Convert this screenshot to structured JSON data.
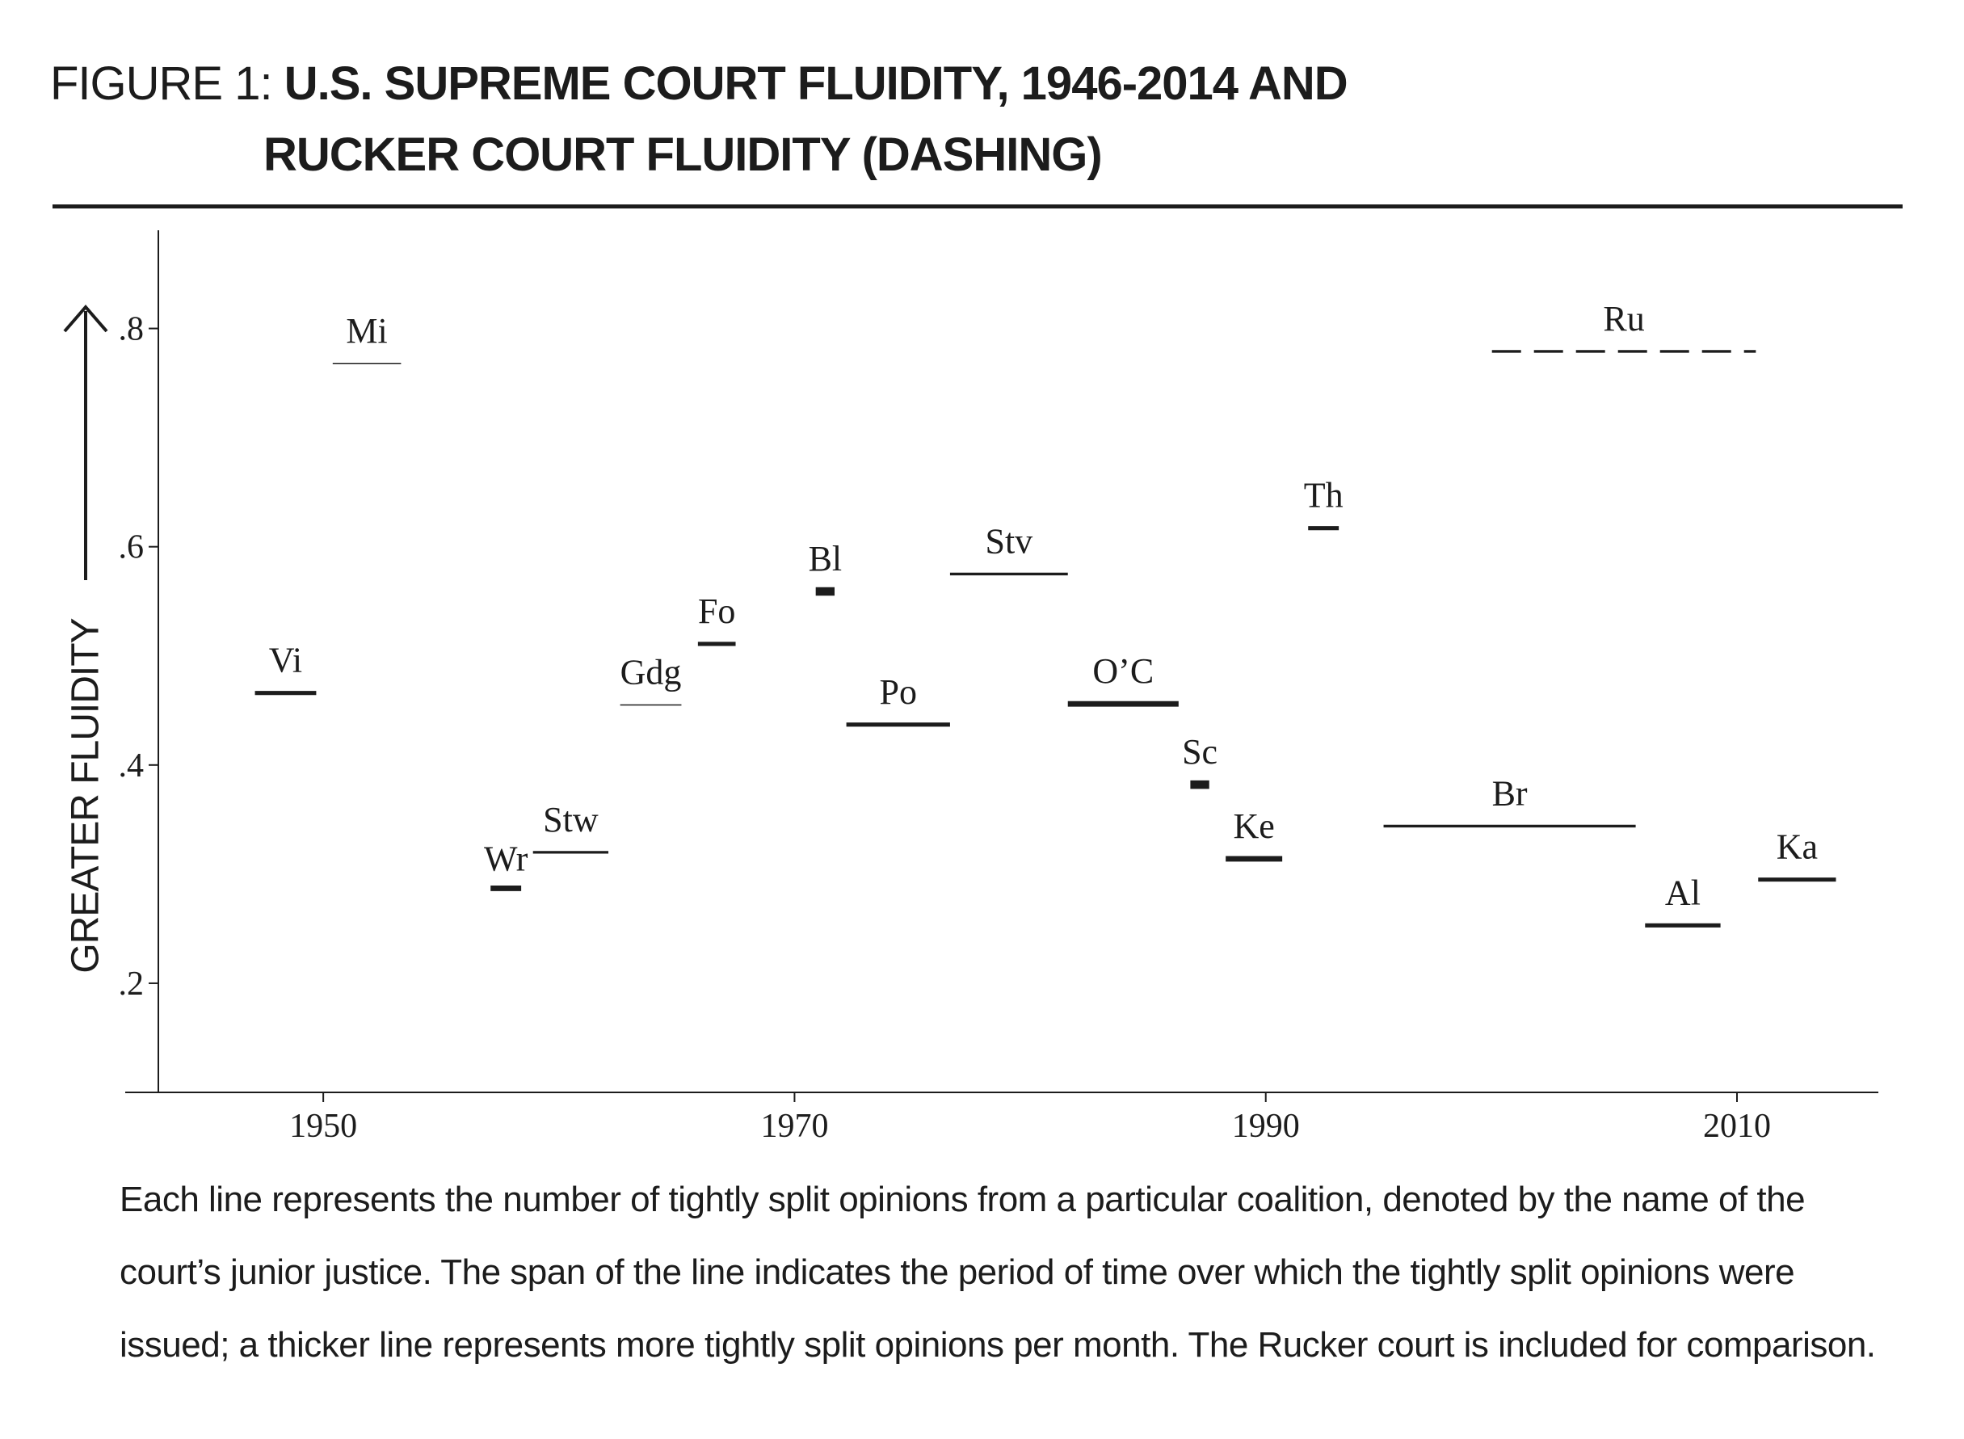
{
  "figure": {
    "label": "FIGURE 1:",
    "title_line1": "U.S. SUPREME COURT FLUIDITY, 1946-2014 AND",
    "title_line2": "RUCKER COURT FLUIDITY (DASHING)"
  },
  "caption_lines": [
    "Each line represents the number of tightly split opinions from a particular coalition, denoted by the name  of the",
    "court’s junior justice. The span of the line indicates the period of time over which the tightly split opinions were",
    "issued; a thicker line represents more tightly split opinions per month. The Rucker court is included for comparison."
  ],
  "chart_data": {
    "type": "scatter",
    "ylabel": "GREATER FLUIDITY",
    "xlim": [
      1943,
      2016
    ],
    "ylim": [
      0.1,
      0.89
    ],
    "x_ticks": [
      1950,
      1970,
      1990,
      2010
    ],
    "x_tick_labels": [
      "1950",
      "1970",
      "1990",
      "2010"
    ],
    "y_ticks": [
      0.2,
      0.4,
      0.6,
      0.8
    ],
    "y_tick_labels": [
      ".2",
      ".4",
      ".6",
      ".8"
    ],
    "grid": false,
    "segments": [
      {
        "name": "Vi",
        "x_start": 1947.1,
        "x_end": 1949.7,
        "y": 0.466,
        "weight": 3,
        "dashed": false
      },
      {
        "name": "Mi",
        "x_start": 1950.4,
        "x_end": 1953.3,
        "y": 0.768,
        "weight": 1,
        "dashed": false
      },
      {
        "name": "Wr",
        "x_start": 1957.1,
        "x_end": 1958.4,
        "y": 0.287,
        "weight": 4,
        "dashed": false
      },
      {
        "name": "Stw",
        "x_start": 1958.9,
        "x_end": 1962.1,
        "y": 0.32,
        "weight": 2,
        "dashed": false
      },
      {
        "name": "Gdg",
        "x_start": 1962.6,
        "x_end": 1965.2,
        "y": 0.455,
        "weight": 1,
        "dashed": false
      },
      {
        "name": "Fo",
        "x_start": 1965.9,
        "x_end": 1967.5,
        "y": 0.511,
        "weight": 3,
        "dashed": false
      },
      {
        "name": "Bl",
        "x_start": 1970.9,
        "x_end": 1971.7,
        "y": 0.559,
        "weight": 6,
        "dashed": false
      },
      {
        "name": "Po",
        "x_start": 1972.2,
        "x_end": 1976.6,
        "y": 0.437,
        "weight": 3,
        "dashed": false
      },
      {
        "name": "Stv",
        "x_start": 1976.6,
        "x_end": 1981.6,
        "y": 0.575,
        "weight": 2,
        "dashed": false
      },
      {
        "name": "O’C",
        "x_start": 1981.6,
        "x_end": 1986.3,
        "y": 0.456,
        "weight": 4,
        "dashed": false
      },
      {
        "name": "Sc",
        "x_start": 1986.8,
        "x_end": 1987.6,
        "y": 0.382,
        "weight": 6,
        "dashed": false
      },
      {
        "name": "Ke",
        "x_start": 1988.3,
        "x_end": 1990.7,
        "y": 0.314,
        "weight": 4,
        "dashed": false
      },
      {
        "name": "Th",
        "x_start": 1991.8,
        "x_end": 1993.1,
        "y": 0.617,
        "weight": 3,
        "dashed": false
      },
      {
        "name": "Br",
        "x_start": 1995.0,
        "x_end": 2005.7,
        "y": 0.344,
        "weight": 2,
        "dashed": false
      },
      {
        "name": "Al",
        "x_start": 2006.1,
        "x_end": 2009.3,
        "y": 0.253,
        "weight": 3,
        "dashed": false
      },
      {
        "name": "Ka",
        "x_start": 2010.9,
        "x_end": 2014.2,
        "y": 0.295,
        "weight": 3,
        "dashed": false
      },
      {
        "name": "Ru",
        "x_start": 1999.6,
        "x_end": 2010.8,
        "y": 0.779,
        "weight": 2,
        "dashed": true
      }
    ]
  }
}
